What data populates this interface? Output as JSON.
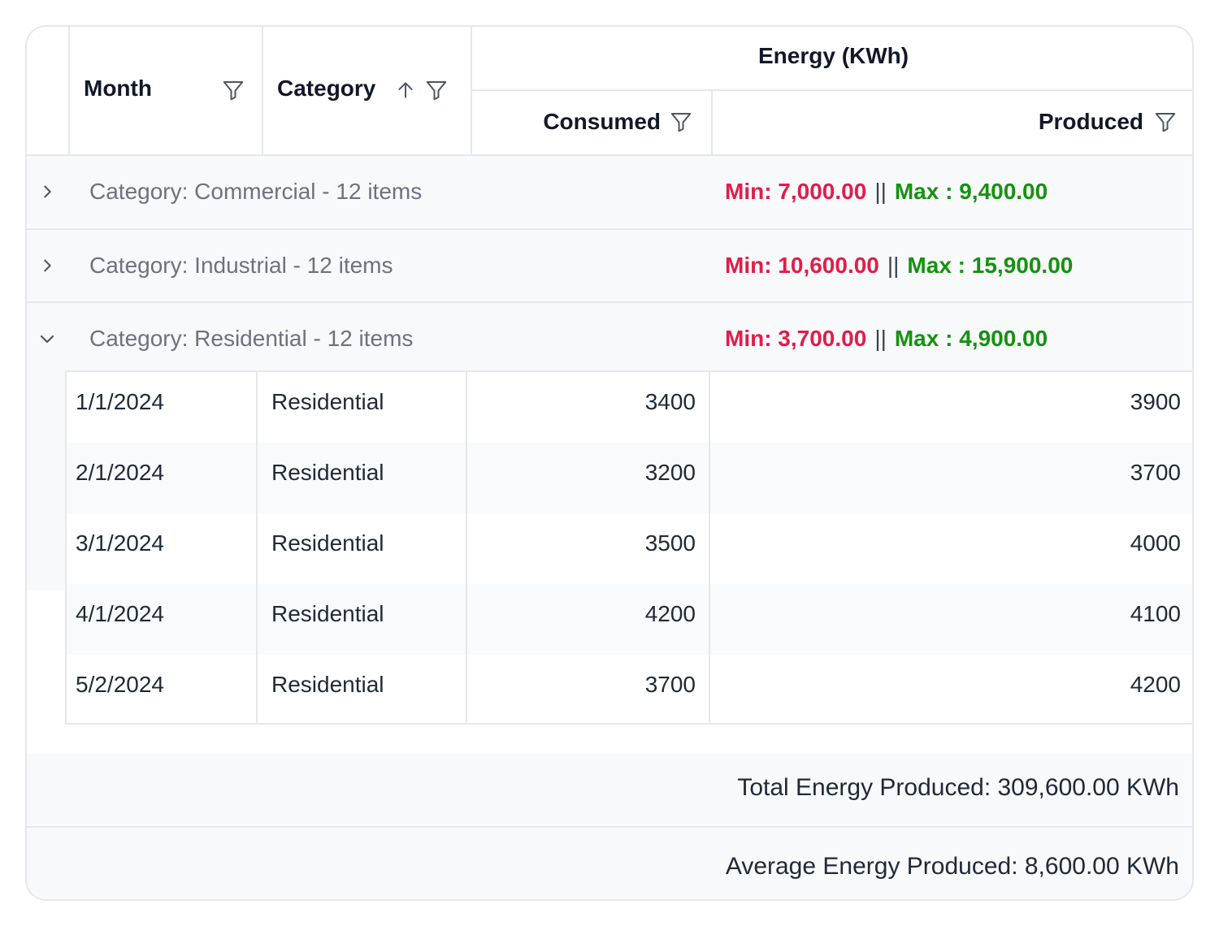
{
  "header": {
    "month": "Month",
    "category": "Category",
    "energy_group": "Energy (KWh)",
    "consumed": "Consumed",
    "produced": "Produced"
  },
  "groups": [
    {
      "label": "Category: Commercial - 12 items",
      "min": "Min: 7,000.00",
      "sep": "||",
      "max": "Max : 9,400.00",
      "expanded": false
    },
    {
      "label": "Category: Industrial - 12 items",
      "min": "Min: 10,600.00",
      "sep": "||",
      "max": "Max : 15,900.00",
      "expanded": false
    },
    {
      "label": "Category: Residential - 12 items",
      "min": "Min: 3,700.00",
      "sep": "||",
      "max": "Max : 4,900.00",
      "expanded": true
    }
  ],
  "rows": [
    {
      "month": "1/1/2024",
      "category": "Residential",
      "consumed": "3400",
      "produced": "3900"
    },
    {
      "month": "2/1/2024",
      "category": "Residential",
      "consumed": "3200",
      "produced": "3700"
    },
    {
      "month": "3/1/2024",
      "category": "Residential",
      "consumed": "3500",
      "produced": "4000"
    },
    {
      "month": "4/1/2024",
      "category": "Residential",
      "consumed": "4200",
      "produced": "4100"
    },
    {
      "month": "5/2/2024",
      "category": "Residential",
      "consumed": "3700",
      "produced": "4200"
    }
  ],
  "footer": {
    "total": "Total Energy Produced: 309,600.00 KWh",
    "average": "Average Energy Produced: 8,600.00 KWh"
  },
  "colors": {
    "min": "#e11d48",
    "max": "#15920f",
    "border": "#e5e7eb",
    "group_bg": "#f8f9fb"
  },
  "icons": {
    "filter": "filter-icon",
    "sort": "arrow-up-icon",
    "collapsed": "chevron-right-icon",
    "expanded": "chevron-down-icon"
  }
}
